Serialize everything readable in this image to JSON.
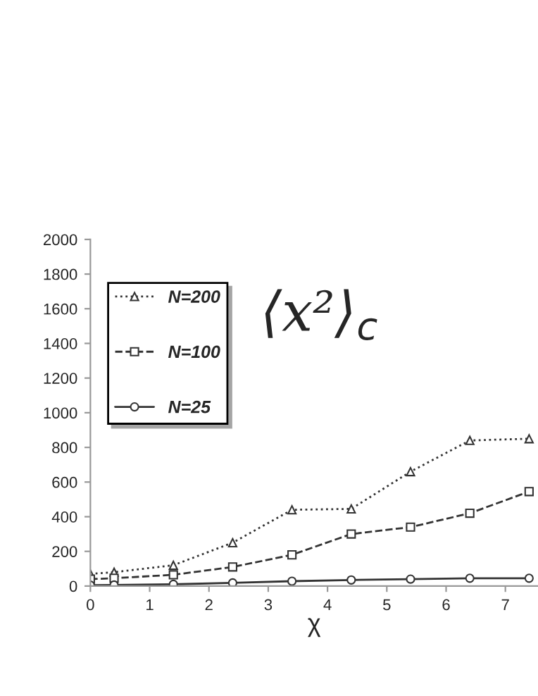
{
  "chart_data": {
    "type": "line",
    "xlabel": "χ",
    "annotations": [
      "⟨x²⟩$_{c}$"
    ],
    "x": [
      0,
      0.4,
      1.4,
      2.4,
      3.4,
      4.4,
      5.4,
      6.4,
      7.4
    ],
    "series": [
      {
        "name": "N=200",
        "color": "#333333",
        "marker": "triangle",
        "line_style": "dotted",
        "values": [
          70,
          80,
          120,
          250,
          440,
          445,
          660,
          840,
          850
        ]
      },
      {
        "name": "N=100",
        "color": "#333333",
        "marker": "square",
        "line_style": "dashed",
        "values": [
          40,
          45,
          65,
          110,
          180,
          300,
          340,
          420,
          545
        ]
      },
      {
        "name": "N=25",
        "color": "#333333",
        "marker": "circle",
        "line_style": "solid",
        "values": [
          5,
          6,
          10,
          18,
          28,
          35,
          40,
          45,
          45
        ]
      }
    ],
    "xlim": [
      0,
      7.55
    ],
    "xticks": [
      0,
      1,
      2,
      3,
      4,
      5,
      6,
      7
    ],
    "ylim": [
      0,
      2000
    ],
    "yticks": [
      0,
      200,
      400,
      600,
      800,
      1000,
      1200,
      1400,
      1600,
      1800,
      2000
    ],
    "grid": false,
    "legend": "top left"
  }
}
